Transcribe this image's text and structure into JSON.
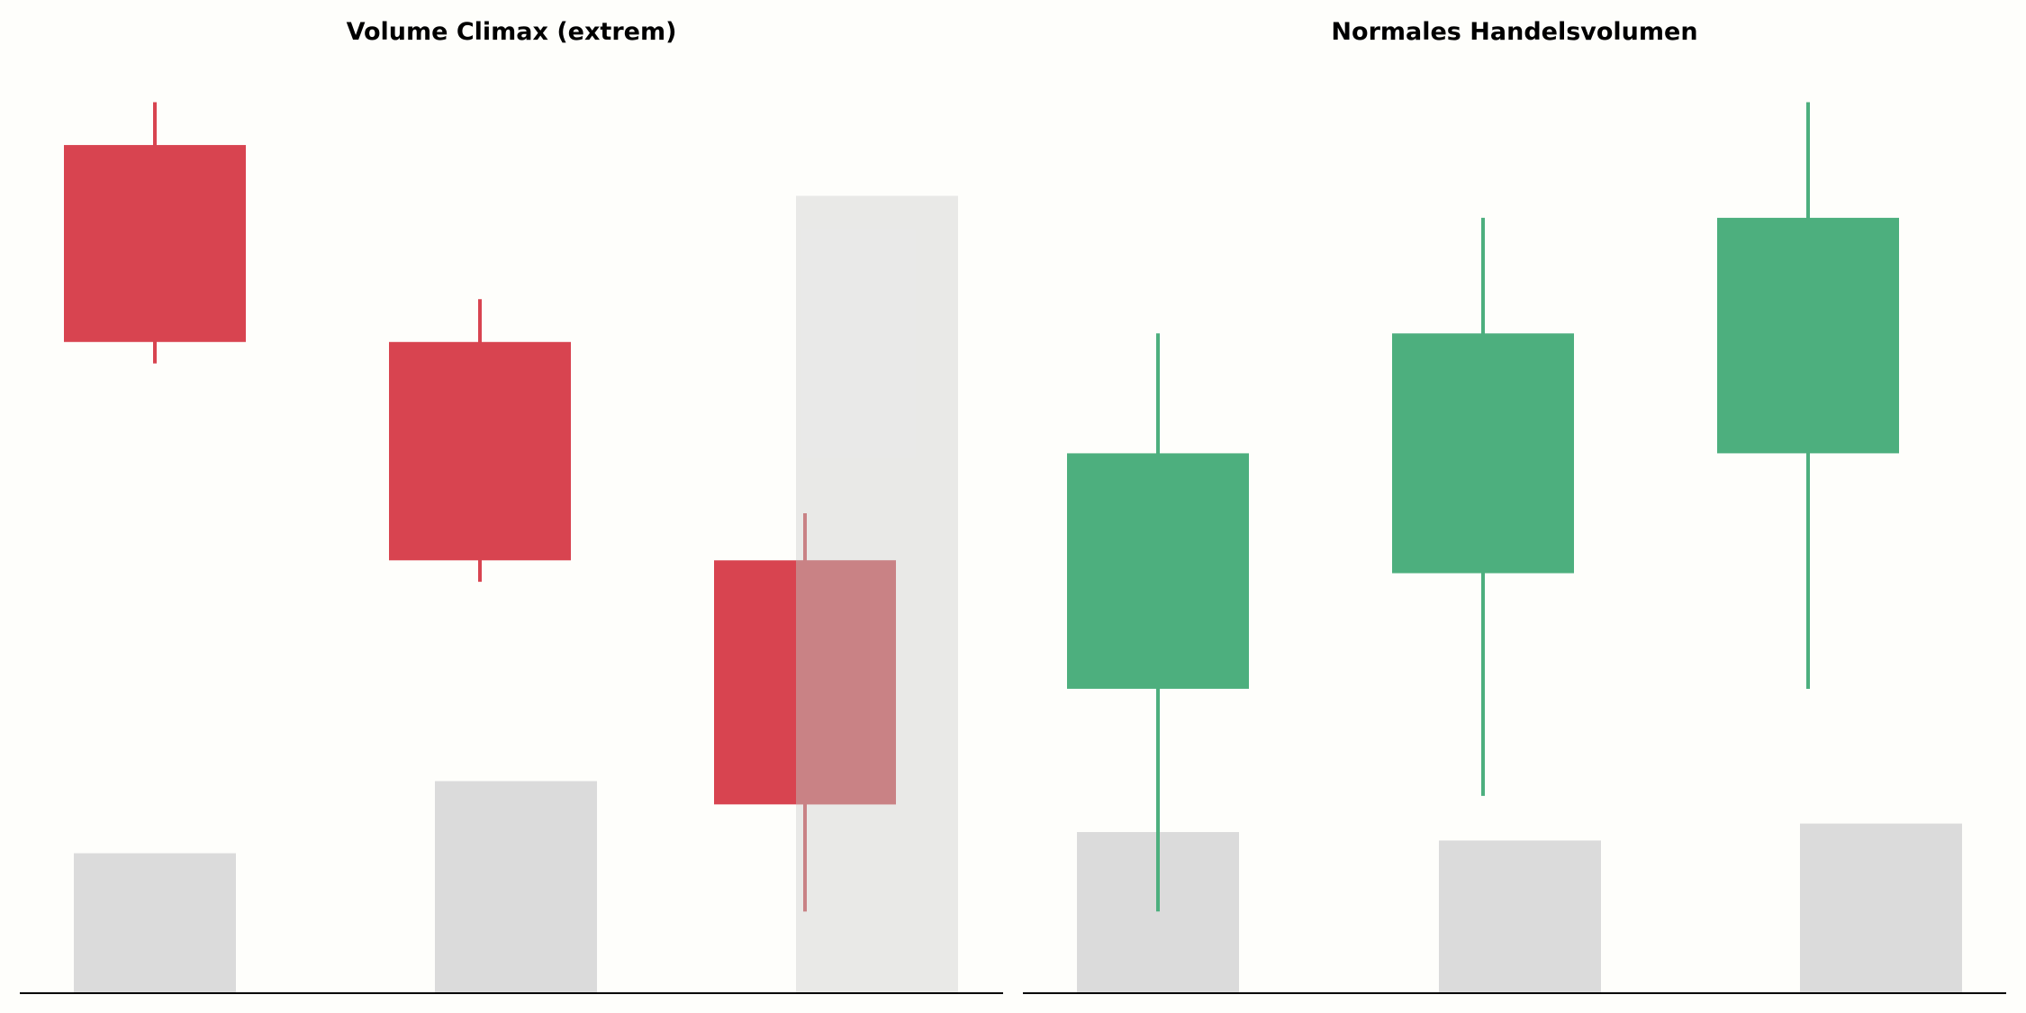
{
  "chart_data": [
    {
      "type": "candlestick",
      "title": "Volume Climax (extrem)",
      "xlabel": "",
      "ylabel": "",
      "ylim": [
        0,
        100
      ],
      "volume_ylim": [
        0,
        100
      ],
      "grid": false,
      "candles": [
        {
          "open": 94,
          "high": 99,
          "low": 68.5,
          "close": 71
        },
        {
          "open": 71,
          "high": 76,
          "low": 43,
          "close": 45.5
        },
        {
          "open": 45.5,
          "high": 51,
          "low": 4.5,
          "close": 17
        }
      ],
      "volume": [
        16.5,
        25,
        94
      ],
      "overlay": {
        "candle_index": 2,
        "note": ""
      },
      "colors": {
        "down": "#d84450",
        "overlay": "#c98285",
        "volume": "#dbdbdb",
        "background": "#fefefb",
        "axis": "#000000"
      }
    },
    {
      "type": "candlestick",
      "title": "Normales Handelsvolumen",
      "xlabel": "",
      "ylabel": "",
      "ylim": [
        0,
        100
      ],
      "volume_ylim": [
        0,
        100
      ],
      "grid": false,
      "candles": [
        {
          "open": 30.5,
          "high": 72,
          "low": 4.5,
          "close": 58
        },
        {
          "open": 44,
          "high": 85.5,
          "low": 18,
          "close": 72
        },
        {
          "open": 58,
          "high": 99,
          "low": 30.5,
          "close": 85.5
        }
      ],
      "volume": [
        19,
        18,
        20
      ],
      "colors": {
        "up": "#4daf7e",
        "volume": "#dbdbdb",
        "background": "#fefefb",
        "axis": "#000000"
      }
    }
  ]
}
